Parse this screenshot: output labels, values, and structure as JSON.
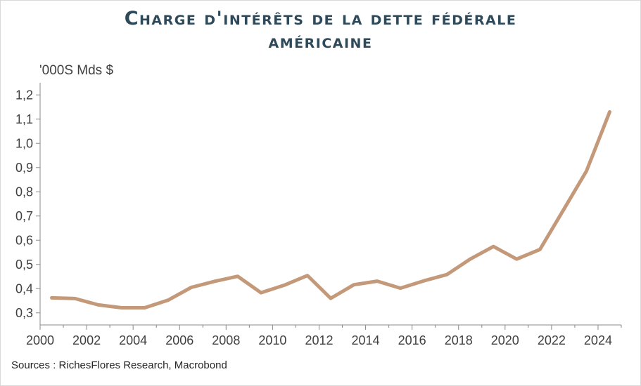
{
  "title_line1": "Charge d'intérêts de la dette fédérale",
  "title_line2": "américaine",
  "unit_label": "'000S Mds $",
  "source": "Sources : RichesFlores Research, Macrobond",
  "colors": {
    "line": "#c4997a",
    "axis": "#8a8a8a",
    "title": "#2e4a5a"
  },
  "chart_data": {
    "type": "line",
    "title": "Charge d'intérêts de la dette fédérale américaine",
    "ylabel": "'000S Mds $",
    "xlim": [
      2000,
      2025
    ],
    "ylim": [
      0.25,
      1.25
    ],
    "grid": false,
    "y_ticks": [
      "0,3",
      "0,4",
      "0,5",
      "0,6",
      "0,7",
      "0,8",
      "0,9",
      "1,0",
      "1,1",
      "1,2"
    ],
    "x_ticks": [
      "2000",
      "2002",
      "2004",
      "2006",
      "2008",
      "2010",
      "2012",
      "2014",
      "2016",
      "2018",
      "2020",
      "2022",
      "2024"
    ],
    "series": [
      {
        "x": [
          2000.5,
          2001.5,
          2002.5,
          2003.5,
          2004.5,
          2005.5,
          2006.5,
          2007.5,
          2008.5,
          2009.5,
          2010.5,
          2011.5,
          2012.5,
          2013.5,
          2014.5,
          2015.5,
          2016.5,
          2017.5,
          2018.5,
          2019.5,
          2020.5,
          2021.5,
          2022.5,
          2023.5,
          2024.5
        ],
        "values": [
          0.362,
          0.359,
          0.333,
          0.321,
          0.321,
          0.352,
          0.405,
          0.43,
          0.451,
          0.383,
          0.414,
          0.454,
          0.36,
          0.416,
          0.431,
          0.402,
          0.432,
          0.458,
          0.522,
          0.574,
          0.522,
          0.562,
          0.723,
          0.885,
          1.13
        ]
      }
    ]
  }
}
